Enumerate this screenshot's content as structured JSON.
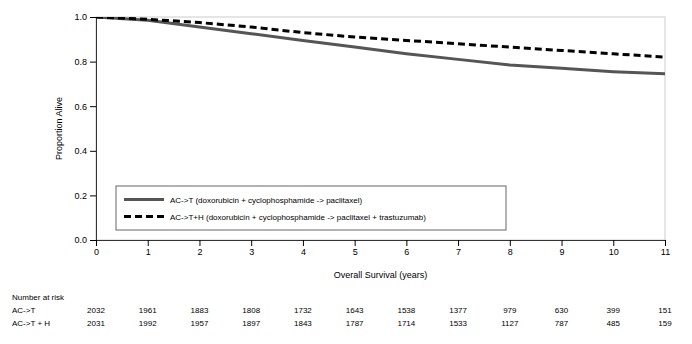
{
  "chart_data": {
    "type": "line",
    "x_label": "Overall Survival (years)",
    "y_label": "Proportion Alive",
    "x": [
      0,
      1,
      2,
      3,
      4,
      5,
      6,
      7,
      8,
      9,
      10,
      11
    ],
    "series": [
      {
        "name": "AC->T (doxorubicin + cyclophosphamide -> paclitaxel)",
        "color": "#555555",
        "line_style": "solid",
        "values": [
          1.0,
          0.985,
          0.955,
          0.925,
          0.895,
          0.865,
          0.835,
          0.81,
          0.785,
          0.77,
          0.755,
          0.745
        ]
      },
      {
        "name": "AC->T+H (doxorubicin + cyclophosphamide -> paclitaxel + trastuzumab)",
        "color": "#000000",
        "line_style": "dashed",
        "values": [
          1.0,
          0.99,
          0.975,
          0.955,
          0.93,
          0.91,
          0.895,
          0.88,
          0.865,
          0.85,
          0.835,
          0.82
        ]
      }
    ],
    "xlim": [
      0,
      11
    ],
    "xticks": [
      0,
      1,
      2,
      3,
      4,
      5,
      6,
      7,
      8,
      9,
      10,
      11
    ],
    "ylim": [
      0,
      1
    ],
    "yticks": [
      {
        "value": 0,
        "label": "0.0"
      },
      0.2,
      0.4,
      0.6,
      0.8,
      {
        "value": 1,
        "label": "1.0"
      }
    ],
    "legend": "lower left",
    "risk_table": {
      "title": "Number at risk",
      "rows": [
        {
          "label": "AC->T",
          "values": [
            2032,
            1961,
            1883,
            1808,
            1732,
            1643,
            1538,
            1377,
            979,
            630,
            399,
            151
          ]
        },
        {
          "label": "AC->T + H",
          "values": [
            2031,
            1992,
            1957,
            1897,
            1843,
            1787,
            1714,
            1533,
            1127,
            787,
            485,
            159
          ]
        }
      ]
    }
  }
}
